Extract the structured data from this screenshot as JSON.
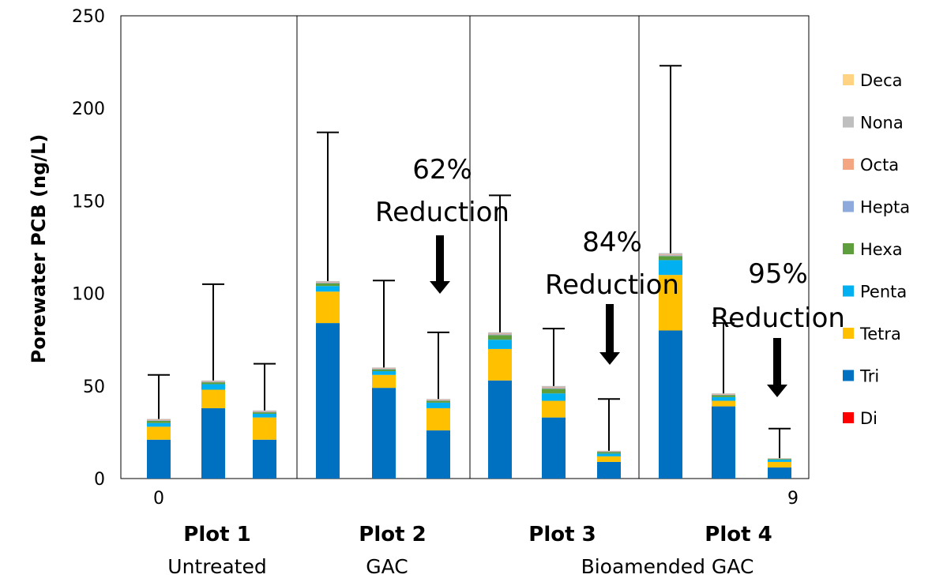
{
  "chart_data": {
    "type": "bar",
    "stacked": true,
    "ylabel": "Porewater PCB (ng/L)",
    "ylim": [
      0,
      250
    ],
    "yticks": [
      0,
      50,
      100,
      150,
      200,
      250
    ],
    "x_tick_labels_visible": [
      "0",
      "9"
    ],
    "groups": [
      {
        "name": "Plot 1",
        "treatment": "Untreated",
        "bars": 3
      },
      {
        "name": "Plot 2",
        "treatment": "GAC",
        "bars": 3
      },
      {
        "name": "Plot 3",
        "treatment": "Bioamended GAC",
        "bars": 3
      },
      {
        "name": "Plot 4",
        "treatment": "",
        "bars": 3
      }
    ],
    "series": [
      {
        "name": "Di",
        "color": "#ff0000",
        "values": [
          0,
          0,
          0,
          0,
          0,
          0,
          0,
          0,
          0,
          0,
          0,
          0
        ]
      },
      {
        "name": "Tri",
        "color": "#0070c0",
        "values": [
          21,
          38,
          21,
          84,
          49,
          26,
          53,
          33,
          9,
          80,
          39,
          6
        ]
      },
      {
        "name": "Tetra",
        "color": "#ffc000",
        "values": [
          7,
          10,
          12,
          17,
          7,
          12,
          17,
          9,
          3,
          30,
          3,
          3
        ]
      },
      {
        "name": "Penta",
        "color": "#00b0f0",
        "values": [
          2,
          3,
          2,
          3,
          2,
          3,
          5,
          4,
          1.5,
          8,
          2,
          1.2
        ]
      },
      {
        "name": "Hexa",
        "color": "#5e9e3c",
        "values": [
          1.2,
          1.0,
          0.8,
          1.5,
          1.0,
          1.0,
          2.5,
          2.5,
          0.8,
          2.2,
          1.0,
          0.4
        ]
      },
      {
        "name": "Hepta",
        "color": "#8ea9db",
        "values": [
          0.3,
          0.3,
          0.3,
          0.3,
          0.3,
          0.3,
          0.4,
          0.4,
          0.2,
          0.4,
          0.3,
          0.1
        ]
      },
      {
        "name": "Octa",
        "color": "#f4a582",
        "values": [
          0.3,
          0.3,
          0.3,
          0.3,
          0.3,
          0.3,
          0.4,
          0.4,
          0.2,
          0.4,
          0.3,
          0.1
        ]
      },
      {
        "name": "Nona",
        "color": "#bfbfbf",
        "values": [
          0.4,
          0.4,
          0.4,
          0.6,
          0.4,
          0.4,
          0.7,
          0.7,
          0.3,
          0.8,
          0.4,
          0.2
        ]
      },
      {
        "name": "Deca",
        "color": "#ffd382",
        "values": [
          0,
          0,
          0,
          0,
          0,
          0,
          0,
          0,
          0,
          0,
          0,
          0
        ]
      }
    ],
    "error_bar_upper": [
      56,
      105,
      62,
      187,
      107,
      79,
      153,
      81,
      43,
      223,
      84,
      27
    ],
    "legend_order": [
      "Deca",
      "Nona",
      "Octa",
      "Hepta",
      "Hexa",
      "Penta",
      "Tetra",
      "Tri",
      "Di"
    ],
    "legend_position": "right",
    "annotations": [
      {
        "line1": "62%",
        "line2": "Reduction",
        "bar_index": 5
      },
      {
        "line1": "84%",
        "line2": "Reduction",
        "bar_index": 8
      },
      {
        "line1": "95%",
        "line2": "Reduction",
        "bar_index": 11
      }
    ]
  }
}
